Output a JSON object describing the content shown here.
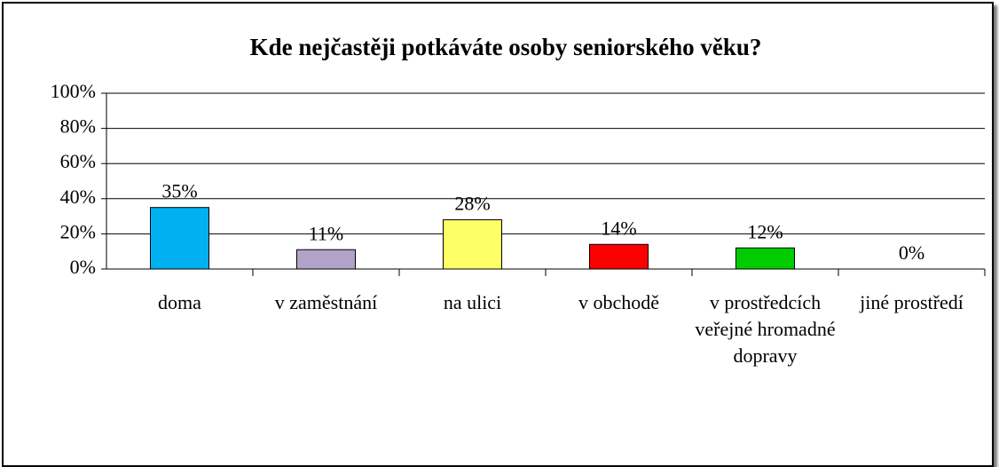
{
  "chart_data": {
    "type": "bar",
    "title": "Kde nejčastěji potkáváte osoby seniorského věku?",
    "categories": [
      "doma",
      "v zaměstnání",
      "na ulici",
      "v obchodě",
      "v prostředcích veřejné hromadné dopravy",
      "jiné prostředí"
    ],
    "values": [
      35,
      11,
      28,
      14,
      12,
      0
    ],
    "value_labels": [
      "35%",
      "11%",
      "28%",
      "14%",
      "12%",
      "0%"
    ],
    "colors": [
      "#00b0f0",
      "#b3a2c7",
      "#ffff66",
      "#ff0000",
      "#00cc00",
      "#ff9900"
    ],
    "ylim": [
      0,
      100
    ],
    "yticks": [
      {
        "value": 0,
        "label": "0%"
      },
      {
        "value": 20,
        "label": "20%"
      },
      {
        "value": 40,
        "label": "40%"
      },
      {
        "value": 60,
        "label": "60%"
      },
      {
        "value": 80,
        "label": "80%"
      },
      {
        "value": 100,
        "label": "100%"
      }
    ],
    "grid": true
  }
}
